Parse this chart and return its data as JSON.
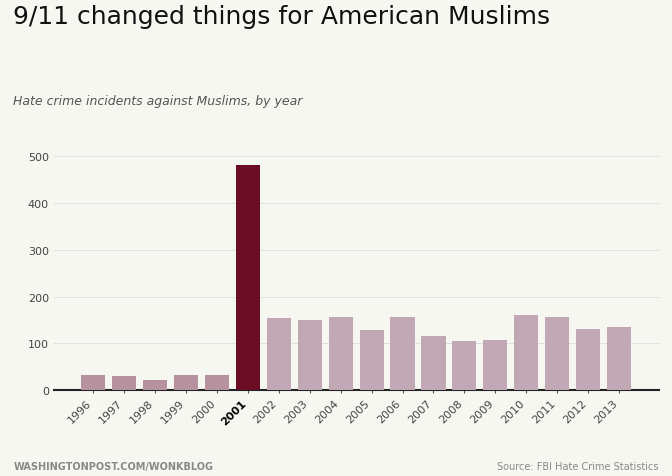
{
  "title": "9/11 changed things for American Muslims",
  "subtitle": "Hate crime incidents against Muslims, by year",
  "years": [
    "1996",
    "1997",
    "1998",
    "1999",
    "2000",
    "2001",
    "2002",
    "2003",
    "2004",
    "2005",
    "2006",
    "2007",
    "2008",
    "2009",
    "2010",
    "2011",
    "2012",
    "2013"
  ],
  "values": [
    33,
    31,
    21,
    32,
    33,
    481,
    155,
    149,
    156,
    128,
    156,
    115,
    105,
    107,
    160,
    157,
    130,
    135
  ],
  "bar_colors": [
    "#b5929e",
    "#b5929e",
    "#b5929e",
    "#b5929e",
    "#b5929e",
    "#6b0d25",
    "#c2a8b5",
    "#c2a8b5",
    "#c2a8b5",
    "#c2a8b5",
    "#c2a8b5",
    "#c2a8b5",
    "#c2a8b5",
    "#c2a8b5",
    "#c2a8b5",
    "#c2a8b5",
    "#c2a8b5",
    "#c2a8b5"
  ],
  "highlight_year": "2001",
  "ylim": [
    0,
    530
  ],
  "yticks": [
    0,
    100,
    200,
    300,
    400,
    500
  ],
  "footer_left": "WASHINGTONPOST.COM/WONKBLOG",
  "footer_right": "Source: FBI Hate Crime Statistics",
  "background_color": "#f7f7f2",
  "title_fontsize": 18,
  "subtitle_fontsize": 9,
  "tick_fontsize": 8,
  "footer_fontsize": 7,
  "grid_color": "#dddddd",
  "axis_bottom_color": "#222222"
}
